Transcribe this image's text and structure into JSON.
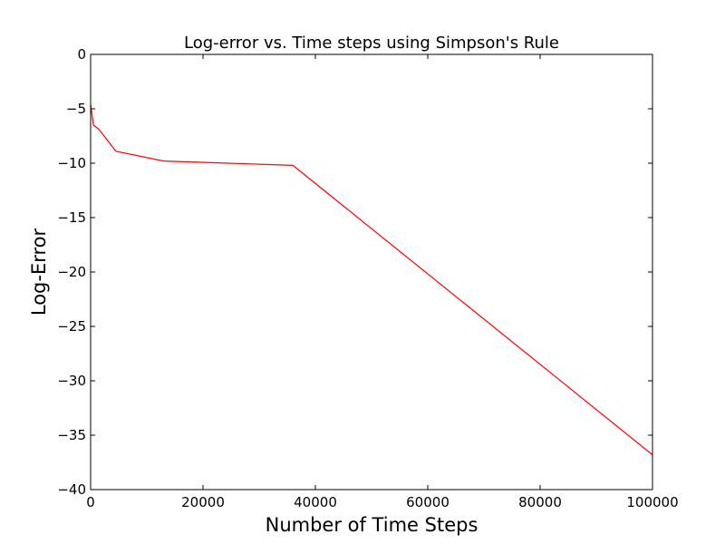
{
  "chart_data": {
    "type": "line",
    "title": "Log-error vs. Time steps using Simpson's Rule",
    "xlabel": "Number of Time Steps",
    "ylabel": "Log-Error",
    "xlim": [
      0,
      100000
    ],
    "ylim": [
      -40,
      0
    ],
    "x_ticks": [
      0,
      20000,
      40000,
      60000,
      80000,
      100000
    ],
    "x_tick_labels": [
      "0",
      "20000",
      "40000",
      "60000",
      "80000",
      "100000"
    ],
    "y_ticks": [
      0,
      -5,
      -10,
      -15,
      -20,
      -25,
      -30,
      -35,
      -40
    ],
    "y_tick_labels": [
      "0",
      "−5",
      "−10",
      "−15",
      "−20",
      "−25",
      "−30",
      "−35",
      "−40"
    ],
    "grid": false,
    "series": [
      {
        "color": "#ff0000",
        "x": [
          0,
          500,
          1500,
          4500,
          13000,
          36000,
          100000
        ],
        "y": [
          -4.6,
          -6.5,
          -6.9,
          -8.9,
          -9.8,
          -10.2,
          -36.8
        ]
      }
    ]
  }
}
